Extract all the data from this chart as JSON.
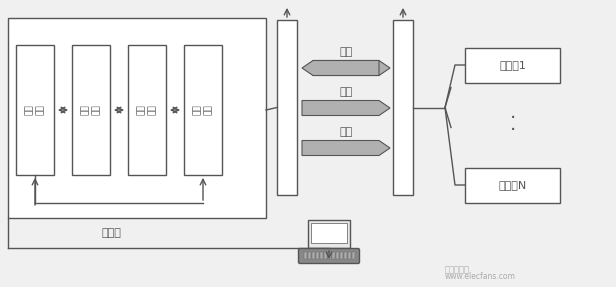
{
  "bg_color": "#f0f0f0",
  "line_color": "#555555",
  "box_fill": "#ffffff",
  "arrow_gray": "#b0b0b0",
  "title_label": "阅读器",
  "modules": [
    "接口\n单元",
    "控制\n模块",
    "收发\n模块",
    "耦合\n模块"
  ],
  "signals": [
    "数据",
    "时序",
    "能量"
  ],
  "signal_bidir": [
    true,
    false,
    false
  ],
  "responder_labels": [
    "应答器1",
    "应答器N"
  ],
  "watermark_line1": "电子发烧友",
  "watermark_line2": "www.elecfans.com",
  "figsize": [
    6.16,
    2.87
  ],
  "dpi": 100
}
